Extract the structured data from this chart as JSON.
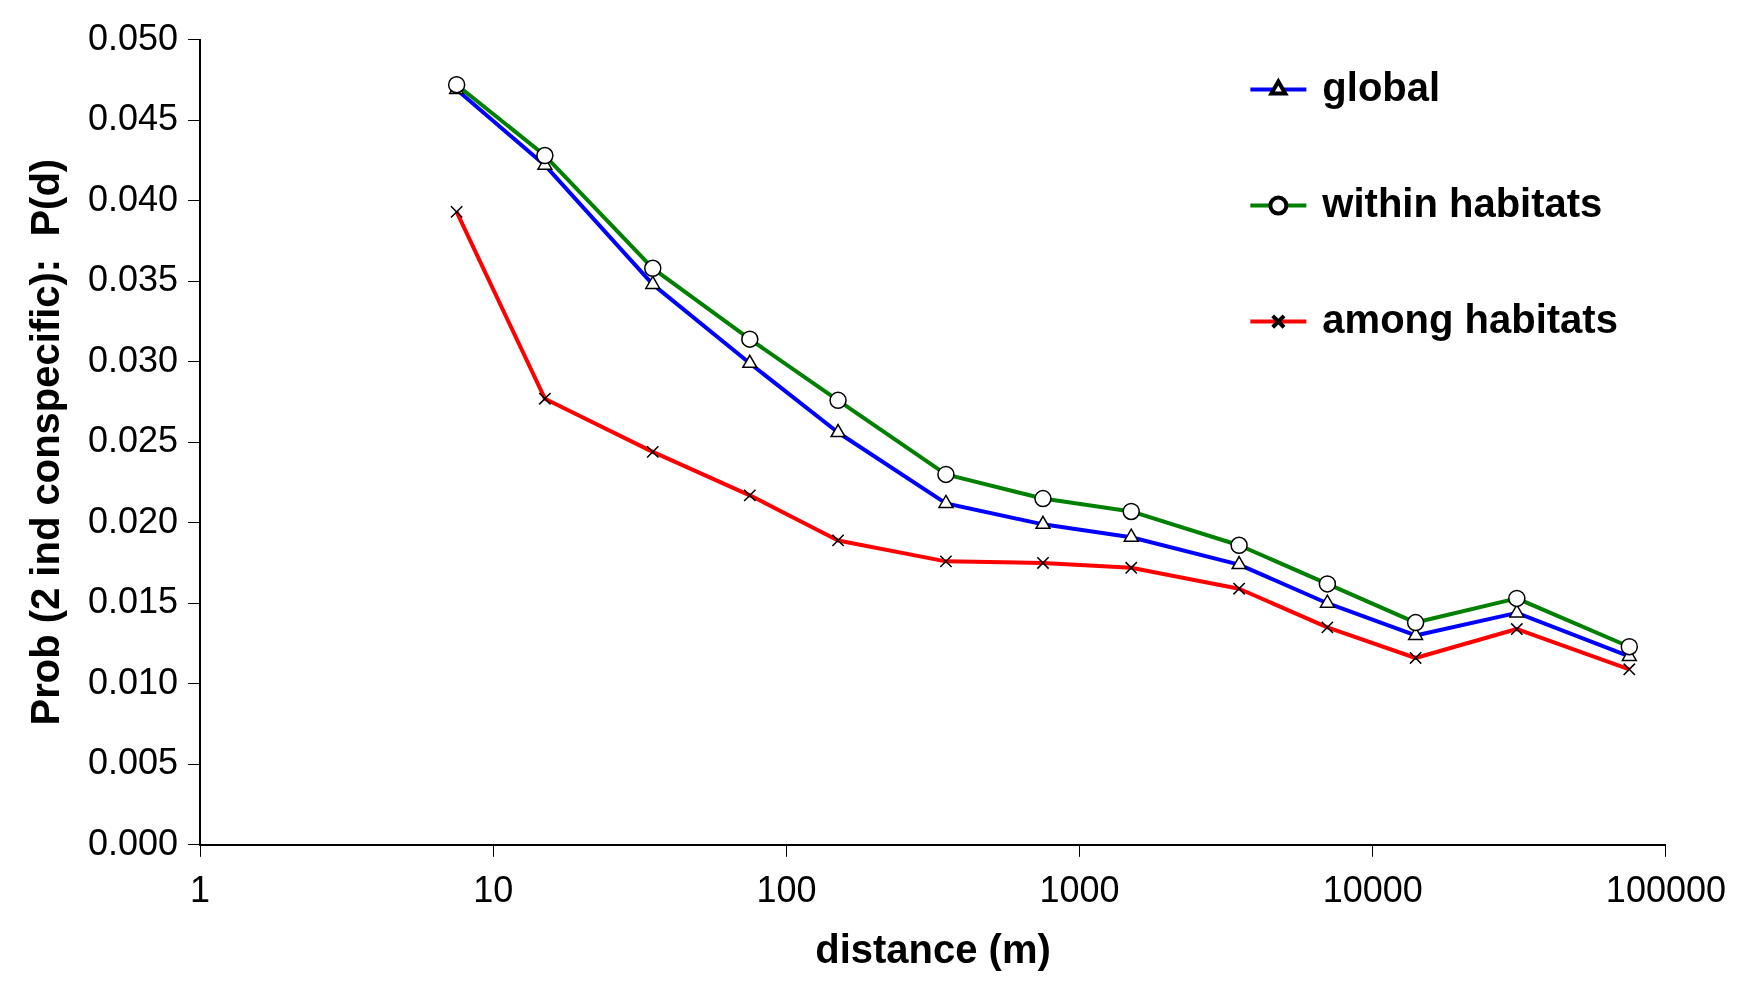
{
  "chart_data": {
    "type": "line",
    "xlabel": "distance (m)",
    "ylabel": "Prob (2 ind conspecific):  P(d)",
    "log": "x",
    "x": [
      7.5,
      15,
      35,
      75,
      150,
      350,
      750,
      1500,
      3500,
      7000,
      14000,
      31000,
      75000
    ],
    "series": [
      {
        "name": "global",
        "color": "#0000ff",
        "marker": "triangle",
        "values": [
          0.0469,
          0.0422,
          0.0348,
          0.0299,
          0.0256,
          0.0212,
          0.0199,
          0.0191,
          0.0174,
          0.015,
          0.013,
          0.0144,
          0.0117
        ]
      },
      {
        "name": "within habitats",
        "color": "#008000",
        "marker": "circle",
        "values": [
          0.0472,
          0.0428,
          0.0358,
          0.0314,
          0.0276,
          0.023,
          0.0215,
          0.0207,
          0.0186,
          0.0162,
          0.0138,
          0.0153,
          0.0123
        ]
      },
      {
        "name": "among habitats",
        "color": "#ff0000",
        "marker": "cross",
        "values": [
          0.0393,
          0.0277,
          0.0244,
          0.0217,
          0.0189,
          0.0176,
          0.0175,
          0.0172,
          0.0159,
          0.0135,
          0.0116,
          0.0134,
          0.0109
        ]
      }
    ],
    "xlim": [
      1,
      100000
    ],
    "xticks": [
      1,
      10,
      100,
      1000,
      10000,
      100000
    ],
    "ylim": [
      0,
      0.05
    ],
    "yticks": [
      {
        "value": 0,
        "label": "0.000"
      },
      {
        "value": 0.005,
        "label": "0.005"
      },
      {
        "value": 0.01,
        "label": "0.010"
      },
      {
        "value": 0.015,
        "label": "0.015"
      },
      {
        "value": 0.02,
        "label": "0.020"
      },
      {
        "value": 0.025,
        "label": "0.025"
      },
      {
        "value": 0.03,
        "label": "0.030"
      },
      {
        "value": 0.035,
        "label": "0.035"
      },
      {
        "value": 0.04,
        "label": "0.040"
      },
      {
        "value": 0.045,
        "label": "0.045"
      },
      {
        "value": 0.05,
        "label": "0.050"
      }
    ],
    "grid": false,
    "legend": "top right",
    "line_style": "solid"
  }
}
